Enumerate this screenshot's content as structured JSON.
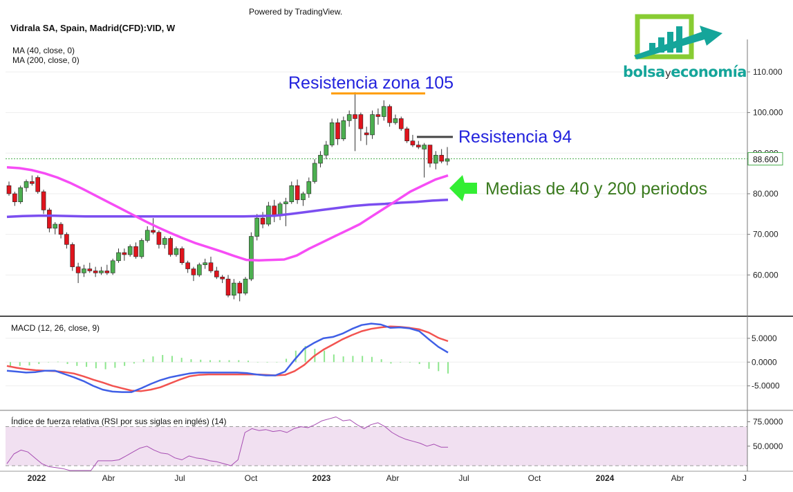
{
  "header": {
    "powered_by": "Powered by TradingView.",
    "symbol": "Vidrala SA, Spain, Madrid(CFD):VID, W",
    "ma40_label": "MA (40, close, 0)",
    "ma200_label": "MA (200, close, 0)"
  },
  "logo": {
    "part1": "bolsa",
    "part2": "y",
    "part3": "economía"
  },
  "colors": {
    "bull": "#4caf50",
    "bear": "#e0141d",
    "ma40": "#f64df5",
    "ma200": "#7b4ef0",
    "macd_line": "#3f5fe6",
    "signal_line": "#f25350",
    "histogram": "#8ee68e",
    "rsi_line": "#a64cb2",
    "rsi_band": "#f1e0f1",
    "annotation_blue": "#2222dd",
    "annotation_green": "#3a7a1e",
    "resistance_105": "#ff9b00",
    "resistance_94": "#444444",
    "arrow_green": "#33ee33",
    "logo_teal": "#15a59a",
    "logo_green": "#88cc33"
  },
  "chart_data": [
    {
      "type": "candlestick",
      "symbol": "Vidrala SA, Spain, Madrid(CFD):VID, W",
      "interval": "W",
      "x_ticks": [
        "2022",
        "Abr",
        "Jul",
        "Oct",
        "2023",
        "Abr",
        "Jul",
        "Oct",
        "2024",
        "Abr",
        "J"
      ],
      "y_ticks": [
        "60.000",
        "70.000",
        "80.000",
        "90.000",
        "100.000",
        "110.000"
      ],
      "ylim": [
        50,
        118
      ],
      "last_price": "88.600",
      "last_price_value": 88.6,
      "ohlc": [
        [
          82.0,
          83.0,
          79.5,
          80.0
        ],
        [
          80.0,
          80.5,
          77.0,
          78.0
        ],
        [
          78.0,
          82.0,
          77.5,
          81.5
        ],
        [
          81.5,
          83.5,
          80.5,
          83.0
        ],
        [
          83.0,
          84.5,
          82.0,
          82.5
        ],
        [
          84.0,
          84.5,
          80.0,
          80.5
        ],
        [
          80.5,
          81.0,
          75.0,
          76.0
        ],
        [
          76.0,
          76.5,
          70.5,
          71.5
        ],
        [
          71.5,
          73.0,
          70.0,
          72.5
        ],
        [
          72.5,
          73.0,
          69.0,
          70.0
        ],
        [
          70.0,
          70.5,
          66.5,
          67.5
        ],
        [
          67.5,
          68.0,
          61.0,
          62.0
        ],
        [
          62.0,
          63.0,
          58.0,
          60.5
        ],
        [
          60.5,
          62.5,
          59.5,
          61.5
        ],
        [
          61.5,
          63.0,
          60.5,
          61.0
        ],
        [
          61.0,
          62.0,
          59.5,
          60.5
        ],
        [
          60.5,
          62.0,
          60.0,
          61.0
        ],
        [
          61.0,
          62.5,
          60.0,
          60.5
        ],
        [
          60.5,
          64.0,
          60.0,
          63.5
        ],
        [
          63.5,
          66.5,
          63.0,
          65.5
        ],
        [
          65.5,
          66.5,
          63.5,
          65.0
        ],
        [
          65.0,
          67.5,
          64.5,
          67.0
        ],
        [
          67.0,
          68.0,
          64.0,
          64.5
        ],
        [
          64.5,
          69.0,
          64.0,
          68.5
        ],
        [
          68.5,
          72.0,
          68.0,
          71.0
        ],
        [
          71.0,
          74.0,
          70.0,
          70.5
        ],
        [
          70.5,
          71.0,
          66.5,
          67.5
        ],
        [
          67.5,
          69.5,
          66.5,
          69.0
        ],
        [
          69.0,
          69.5,
          64.5,
          65.0
        ],
        [
          65.0,
          67.0,
          64.5,
          66.5
        ],
        [
          66.5,
          67.0,
          62.5,
          63.0
        ],
        [
          63.0,
          63.5,
          60.5,
          61.5
        ],
        [
          61.5,
          62.0,
          58.5,
          60.0
        ],
        [
          60.0,
          63.0,
          59.5,
          62.5
        ],
        [
          62.5,
          64.0,
          61.5,
          63.0
        ],
        [
          63.0,
          64.5,
          60.5,
          61.0
        ],
        [
          61.0,
          62.0,
          59.0,
          59.5
        ],
        [
          59.5,
          60.0,
          58.0,
          59.0
        ],
        [
          59.0,
          60.0,
          54.5,
          55.0
        ],
        [
          55.0,
          59.0,
          54.0,
          58.0
        ],
        [
          58.0,
          58.5,
          53.5,
          55.5
        ],
        [
          55.5,
          59.5,
          55.0,
          59.0
        ],
        [
          59.0,
          70.5,
          58.5,
          69.5
        ],
        [
          69.5,
          75.0,
          68.5,
          74.0
        ],
        [
          74.0,
          75.5,
          71.5,
          72.5
        ],
        [
          72.5,
          78.0,
          72.0,
          77.0
        ],
        [
          77.0,
          78.5,
          73.0,
          74.5
        ],
        [
          74.5,
          78.0,
          73.5,
          77.5
        ],
        [
          77.5,
          79.0,
          72.0,
          78.0
        ],
        [
          78.0,
          83.0,
          77.5,
          82.0
        ],
        [
          82.0,
          83.5,
          77.5,
          78.5
        ],
        [
          78.5,
          80.5,
          77.0,
          80.0
        ],
        [
          80.0,
          84.0,
          79.0,
          83.0
        ],
        [
          83.0,
          88.5,
          82.5,
          87.5
        ],
        [
          87.5,
          90.5,
          86.5,
          89.5
        ],
        [
          89.5,
          93.0,
          88.5,
          92.0
        ],
        [
          92.0,
          98.5,
          91.5,
          97.5
        ],
        [
          97.5,
          98.5,
          92.0,
          93.5
        ],
        [
          93.5,
          99.0,
          93.0,
          98.0
        ],
        [
          98.0,
          100.5,
          96.5,
          99.5
        ],
        [
          99.5,
          105.0,
          90.5,
          98.5
        ],
        [
          99.5,
          100.0,
          93.0,
          96.0
        ],
        [
          95.0,
          96.5,
          92.0,
          94.5
        ],
        [
          94.5,
          100.5,
          93.5,
          99.5
        ],
        [
          99.5,
          101.0,
          97.0,
          99.0
        ],
        [
          99.0,
          103.0,
          98.0,
          101.5
        ],
        [
          101.5,
          102.0,
          96.5,
          97.5
        ],
        [
          97.5,
          99.5,
          97.0,
          98.5
        ],
        [
          98.5,
          99.0,
          95.5,
          96.0
        ],
        [
          96.0,
          96.5,
          92.5,
          93.0
        ],
        [
          93.0,
          94.5,
          91.5,
          92.0
        ],
        [
          92.0,
          93.0,
          91.0,
          91.5
        ],
        [
          91.0,
          92.5,
          84.0,
          92.0
        ],
        [
          92.0,
          92.0,
          86.5,
          87.5
        ],
        [
          87.5,
          90.5,
          86.0,
          89.5
        ],
        [
          89.5,
          91.0,
          87.5,
          88.0
        ],
        [
          88.0,
          91.5,
          87.0,
          88.6
        ]
      ],
      "ma40": [
        86.5,
        86.3,
        85.8,
        85.0,
        84.0,
        82.7,
        81.2,
        79.6,
        78.0,
        76.4,
        74.8,
        73.2,
        71.7,
        70.3,
        69.0,
        67.8,
        66.8,
        65.8,
        64.7,
        63.7,
        63.6,
        63.7,
        63.8,
        64.8,
        66.5,
        68.0,
        69.5,
        71.0,
        72.5,
        74.5,
        76.5,
        78.5,
        80.5,
        82.0,
        83.5,
        84.5
      ],
      "ma200": [
        74.3,
        74.5,
        74.6,
        74.6,
        74.5,
        74.4,
        74.4,
        74.4,
        74.4,
        74.4,
        74.4,
        74.4,
        74.4,
        74.4,
        74.4,
        74.4,
        74.5,
        74.6,
        75.0,
        75.5,
        76.0,
        76.5,
        77.0,
        77.3,
        77.5,
        77.8,
        78.0,
        78.3,
        78.5
      ]
    },
    {
      "type": "line",
      "title": "MACD (12, 26, close, 9)",
      "y_ticks": [
        "5.0000",
        "0.0000",
        "-5.0000"
      ],
      "ylim": [
        -10,
        9.5
      ],
      "series": [
        {
          "name": "MACD",
          "values": [
            -1.8,
            -2.0,
            -2.2,
            -2.1,
            -1.8,
            -1.8,
            -2.5,
            -3.2,
            -4.0,
            -5.0,
            -5.8,
            -6.2,
            -6.3,
            -6.3,
            -5.5,
            -4.6,
            -3.8,
            -3.2,
            -2.8,
            -2.4,
            -2.2,
            -2.2,
            -2.2,
            -2.2,
            -2.2,
            -2.3,
            -2.6,
            -2.8,
            -2.8,
            -2.0,
            0.5,
            2.8,
            4.0,
            5.0,
            5.3,
            6.0,
            7.0,
            7.8,
            8.1,
            7.9,
            7.2,
            7.3,
            7.1,
            6.5,
            4.8,
            3.2,
            2.0
          ]
        },
        {
          "name": "Signal",
          "values": [
            -0.8,
            -1.2,
            -1.5,
            -1.7,
            -1.8,
            -1.9,
            -2.1,
            -2.4,
            -3.0,
            -3.7,
            -4.3,
            -5.0,
            -5.5,
            -6.0,
            -6.1,
            -5.8,
            -5.3,
            -4.5,
            -3.7,
            -3.0,
            -2.7,
            -2.6,
            -2.6,
            -2.6,
            -2.6,
            -2.6,
            -2.6,
            -2.7,
            -2.8,
            -2.7,
            -1.9,
            -0.6,
            1.2,
            2.6,
            3.7,
            4.8,
            5.7,
            6.5,
            7.0,
            7.3,
            7.5,
            7.4,
            7.2,
            6.9,
            6.2,
            5.1,
            4.4
          ]
        },
        {
          "name": "Histogram",
          "values": [
            -1.0,
            -0.8,
            -0.7,
            -0.4,
            0.0,
            0.1,
            -0.4,
            -0.8,
            -1.0,
            -1.3,
            -1.5,
            -1.2,
            -0.8,
            -0.3,
            0.6,
            1.2,
            1.5,
            1.3,
            0.9,
            0.6,
            0.5,
            0.4,
            0.4,
            0.4,
            0.4,
            0.3,
            0.0,
            -0.1,
            0.0,
            0.7,
            2.4,
            3.4,
            2.8,
            2.4,
            1.6,
            1.2,
            1.3,
            1.3,
            1.1,
            0.6,
            -0.3,
            -0.1,
            -0.1,
            -0.4,
            -1.4,
            -1.9,
            -2.4
          ]
        }
      ]
    },
    {
      "type": "line",
      "title": "Índice de fuerza relativa (RSI por sus siglas en inglés) (14)",
      "y_ticks": [
        "75.0000",
        "50.0000"
      ],
      "ylim": [
        25,
        86
      ],
      "band": [
        30,
        70
      ],
      "series": [
        {
          "name": "RSI",
          "values": [
            32,
            42,
            46,
            44,
            38,
            32,
            29,
            28,
            27,
            25,
            25,
            25,
            25,
            35,
            35,
            35,
            36,
            40,
            44,
            48,
            50,
            46,
            43,
            42,
            38,
            36,
            40,
            38,
            37,
            35,
            34,
            32,
            30,
            36,
            64,
            68,
            66,
            67,
            65,
            66,
            64,
            68,
            70,
            69,
            72,
            76,
            78,
            80,
            76,
            77,
            72,
            68,
            72,
            74,
            70,
            64,
            60,
            57,
            55,
            53,
            50,
            52,
            49,
            49
          ]
        }
      ]
    }
  ],
  "annotations": {
    "resistance_105": "Resistencia zona 105",
    "resistance_94": "Resistencia 94",
    "moving_averages": "Medias de 40 y 200 periodos"
  }
}
